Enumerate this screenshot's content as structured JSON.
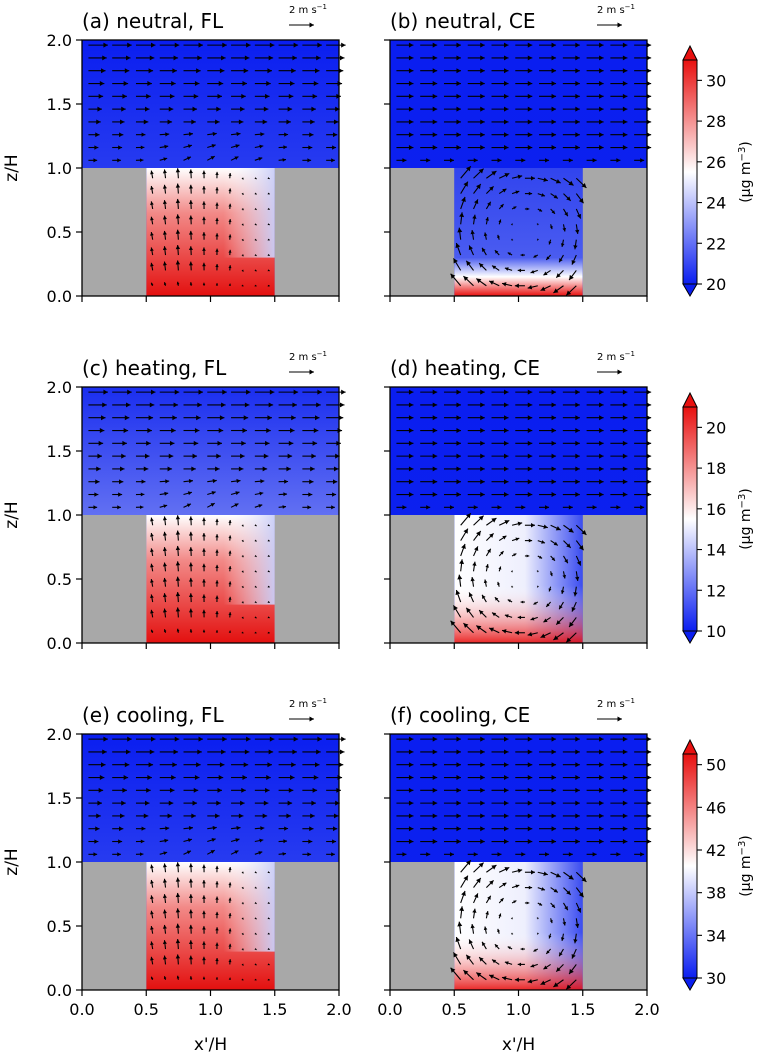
{
  "figure": {
    "xlabel": "x'/H",
    "ylabel": "z/H",
    "scale_arrow_label": "2 m s",
    "scale_arrow_exponent": "−1",
    "colorbar_unit": "(μg m",
    "colorbar_unit_exponent": "−3",
    "colorbar_unit_close": ")"
  },
  "chart_data": [
    {
      "type": "heatmap",
      "panel": "a",
      "title": "(a) neutral, FL",
      "regime": "neutral",
      "model": "FL",
      "xlim": [
        0,
        2
      ],
      "ylim": [
        0,
        2
      ],
      "xticks": [
        "0.0",
        "0.5",
        "1.0",
        "1.5",
        "2.0"
      ],
      "yticks": [
        "0.0",
        "0.5",
        "1.0",
        "1.5",
        "2.0"
      ],
      "buildings": [
        [
          0,
          0.5
        ],
        [
          1.5,
          2.0
        ]
      ],
      "building_height": 1.0,
      "canyon_color": "high",
      "colorbar": {
        "row": 0,
        "min": 20,
        "max": 31,
        "ticks": [
          20,
          22,
          24,
          26,
          28,
          30
        ]
      }
    },
    {
      "type": "heatmap",
      "panel": "b",
      "title": "(b) neutral, CE",
      "regime": "neutral",
      "model": "CE",
      "xlim": [
        0,
        2
      ],
      "ylim": [
        0,
        2
      ],
      "xticks": [
        "0.0",
        "0.5",
        "1.0",
        "1.5",
        "2.0"
      ],
      "yticks": [
        "0.0",
        "0.5",
        "1.0",
        "1.5",
        "2.0"
      ],
      "buildings": [
        [
          0,
          0.5
        ],
        [
          1.5,
          2.0
        ]
      ],
      "building_height": 1.0,
      "canyon_color": "low",
      "colorbar": {
        "row": 0,
        "min": 20,
        "max": 31,
        "ticks": [
          20,
          22,
          24,
          26,
          28,
          30
        ]
      }
    },
    {
      "type": "heatmap",
      "panel": "c",
      "title": "(c) heating, FL",
      "regime": "heating",
      "model": "FL",
      "xlim": [
        0,
        2
      ],
      "ylim": [
        0,
        2
      ],
      "xticks": [
        "0.0",
        "0.5",
        "1.0",
        "1.5",
        "2.0"
      ],
      "yticks": [
        "0.0",
        "0.5",
        "1.0",
        "1.5",
        "2.0"
      ],
      "buildings": [
        [
          0,
          0.5
        ],
        [
          1.5,
          2.0
        ]
      ],
      "building_height": 1.0,
      "canyon_color": "high",
      "colorbar": {
        "row": 1,
        "min": 10,
        "max": 21,
        "ticks": [
          10,
          12,
          14,
          16,
          18,
          20
        ]
      }
    },
    {
      "type": "heatmap",
      "panel": "d",
      "title": "(d) heating, CE",
      "regime": "heating",
      "model": "CE",
      "xlim": [
        0,
        2
      ],
      "ylim": [
        0,
        2
      ],
      "xticks": [
        "0.0",
        "0.5",
        "1.0",
        "1.5",
        "2.0"
      ],
      "yticks": [
        "0.0",
        "0.5",
        "1.0",
        "1.5",
        "2.0"
      ],
      "buildings": [
        [
          0,
          0.5
        ],
        [
          1.5,
          2.0
        ]
      ],
      "building_height": 1.0,
      "canyon_color": "mid",
      "colorbar": {
        "row": 1,
        "min": 10,
        "max": 21,
        "ticks": [
          10,
          12,
          14,
          16,
          18,
          20
        ]
      }
    },
    {
      "type": "heatmap",
      "panel": "e",
      "title": "(e) cooling, FL",
      "regime": "cooling",
      "model": "FL",
      "xlim": [
        0,
        2
      ],
      "ylim": [
        0,
        2
      ],
      "xticks": [
        "0.0",
        "0.5",
        "1.0",
        "1.5",
        "2.0"
      ],
      "yticks": [
        "0.0",
        "0.5",
        "1.0",
        "1.5",
        "2.0"
      ],
      "buildings": [
        [
          0,
          0.5
        ],
        [
          1.5,
          2.0
        ]
      ],
      "building_height": 1.0,
      "canyon_color": "high",
      "colorbar": {
        "row": 2,
        "min": 30,
        "max": 51,
        "ticks": [
          30,
          34,
          38,
          42,
          46,
          50
        ]
      }
    },
    {
      "type": "heatmap",
      "panel": "f",
      "title": "(f) cooling, CE",
      "regime": "cooling",
      "model": "CE",
      "xlim": [
        0,
        2
      ],
      "ylim": [
        0,
        2
      ],
      "xticks": [
        "0.0",
        "0.5",
        "1.0",
        "1.5",
        "2.0"
      ],
      "yticks": [
        "0.0",
        "0.5",
        "1.0",
        "1.5",
        "2.0"
      ],
      "buildings": [
        [
          0,
          0.5
        ],
        [
          1.5,
          2.0
        ]
      ],
      "building_height": 1.0,
      "canyon_color": "mid",
      "colorbar": {
        "row": 2,
        "min": 30,
        "max": 51,
        "ticks": [
          30,
          34,
          38,
          42,
          46,
          50
        ]
      }
    }
  ],
  "colors": {
    "low": "#0a1ef0",
    "mid": "#ffffff",
    "high": "#e8100f",
    "building": "#a8a8a8",
    "arrow": "#000000"
  }
}
